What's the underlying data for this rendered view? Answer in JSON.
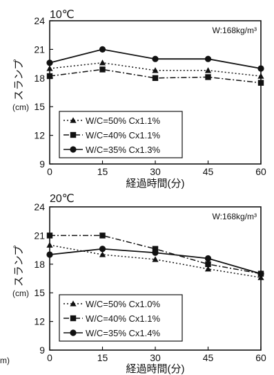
{
  "stray_label": "m)",
  "chart_data": [
    {
      "type": "line",
      "title": "10℃",
      "annotation": "W:168kg/m³",
      "xlabel": "経過時間(分)",
      "ylabel": "スランプ",
      "ylabel_unit": "(cm)",
      "x": [
        0,
        15,
        30,
        45,
        60
      ],
      "xlim": [
        0,
        60
      ],
      "ylim": [
        9,
        24
      ],
      "xticks": [
        "0",
        "15",
        "30",
        "45",
        "60"
      ],
      "yticks": [
        "9",
        "12",
        "15",
        "18",
        "21",
        "24"
      ],
      "grid": false,
      "legend_position": "bottom-left",
      "series": [
        {
          "name": "W/C=50%  Cx1.1%",
          "marker": "triangle",
          "dash": "dotted",
          "values": [
            19.0,
            19.6,
            18.8,
            18.8,
            18.2
          ]
        },
        {
          "name": "W/C=40%  Cx1.1%",
          "marker": "square",
          "dash": "dashdot",
          "values": [
            18.2,
            18.9,
            18.0,
            18.1,
            17.5
          ]
        },
        {
          "name": "W/C=35%  Cx1.3%",
          "marker": "circle",
          "dash": "solid",
          "values": [
            19.6,
            21.0,
            20.0,
            20.0,
            19.0
          ]
        }
      ]
    },
    {
      "type": "line",
      "title": "20℃",
      "annotation": "W:168kg/m³",
      "xlabel": "経過時間(分)",
      "ylabel": "スランプ",
      "ylabel_unit": "(cm)",
      "x": [
        0,
        15,
        30,
        45,
        60
      ],
      "xlim": [
        0,
        60
      ],
      "ylim": [
        9,
        24
      ],
      "xticks": [
        "0",
        "15",
        "30",
        "45",
        "60"
      ],
      "yticks": [
        "9",
        "12",
        "15",
        "18",
        "21",
        "24"
      ],
      "grid": false,
      "legend_position": "bottom-left",
      "series": [
        {
          "name": "W/C=50%  Cx1.0%",
          "marker": "triangle",
          "dash": "dotted",
          "values": [
            20.0,
            19.0,
            18.5,
            17.5,
            16.6
          ]
        },
        {
          "name": "W/C=40%  Cx1.1%",
          "marker": "square",
          "dash": "dashdot",
          "values": [
            21.0,
            21.0,
            19.6,
            18.0,
            17.0
          ]
        },
        {
          "name": "W/C=35%  Cx1.4%",
          "marker": "circle",
          "dash": "solid",
          "values": [
            19.0,
            19.6,
            19.2,
            18.6,
            17.0
          ]
        }
      ]
    }
  ]
}
